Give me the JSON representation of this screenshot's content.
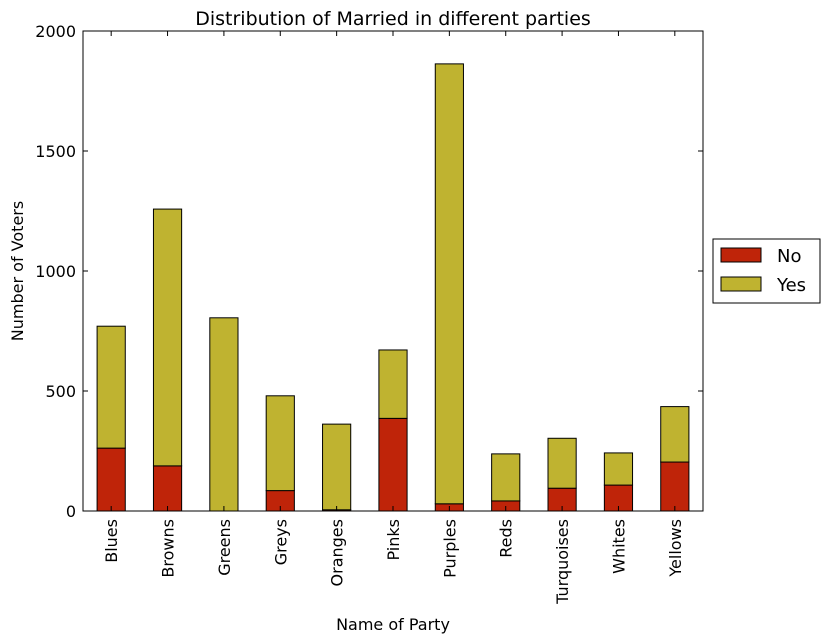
{
  "chart_data": {
    "type": "bar",
    "stacked": true,
    "title": "Distribution of Married in different parties",
    "xlabel": "Name of Party",
    "ylabel": "Number of Voters",
    "categories": [
      "Blues",
      "Browns",
      "Greens",
      "Greys",
      "Oranges",
      "Pinks",
      "Purples",
      "Reds",
      "Turquoises",
      "Whites",
      "Yellows"
    ],
    "series": [
      {
        "name": "No",
        "color": "#bf2409",
        "values": [
          262,
          188,
          0,
          85,
          5,
          386,
          30,
          42,
          95,
          108,
          204
        ]
      },
      {
        "name": "Yes",
        "color": "#bfb330",
        "values": [
          508,
          1070,
          805,
          395,
          357,
          285,
          1833,
          196,
          208,
          134,
          231
        ]
      }
    ],
    "ylim": [
      0,
      2000
    ],
    "yticks": [
      0,
      500,
      1000,
      1500,
      2000
    ],
    "grid": false,
    "legend_position": "right-outside"
  }
}
